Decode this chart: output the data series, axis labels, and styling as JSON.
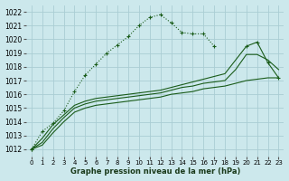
{
  "title": "Graphe pression niveau de la mer (hPa)",
  "bg_color": "#cce8ec",
  "grid_color": "#aacdd4",
  "line_color": "#1a5c1a",
  "ylim": [
    1011.5,
    1022.5
  ],
  "xlim": [
    -0.5,
    23.5
  ],
  "yticks": [
    1012,
    1013,
    1014,
    1015,
    1016,
    1017,
    1018,
    1019,
    1020,
    1021,
    1022
  ],
  "xticks": [
    0,
    1,
    2,
    3,
    4,
    5,
    6,
    7,
    8,
    9,
    10,
    11,
    12,
    13,
    14,
    15,
    16,
    17,
    18,
    19,
    20,
    21,
    22,
    23
  ],
  "s1_x": [
    0,
    1,
    2,
    3,
    4,
    5,
    6,
    7,
    8,
    9,
    10,
    11,
    12,
    13,
    14,
    15,
    16,
    17
  ],
  "s1_y": [
    1012.0,
    1013.3,
    1013.9,
    1014.8,
    1016.2,
    1017.4,
    1018.2,
    1019.0,
    1019.6,
    1020.2,
    1021.0,
    1021.6,
    1021.8,
    1021.2,
    1020.5,
    1020.4,
    1020.4,
    1019.5
  ],
  "s2_x": [
    0,
    1,
    2,
    3,
    4,
    5,
    6,
    7,
    8,
    9,
    10,
    11,
    12,
    13,
    14,
    15,
    16,
    17,
    18,
    19,
    20,
    21,
    22,
    23
  ],
  "s2_y": [
    1012.0,
    1012.8,
    1013.8,
    1014.5,
    1015.2,
    1015.5,
    1015.7,
    1015.8,
    1015.9,
    1016.0,
    1016.1,
    1016.2,
    1016.3,
    1016.5,
    1016.7,
    1016.9,
    1017.1,
    1017.3,
    1017.5,
    1018.5,
    1019.5,
    1019.8,
    1018.3,
    1017.2
  ],
  "s3_x": [
    0,
    1,
    2,
    3,
    4,
    5,
    6,
    7,
    8,
    9,
    10,
    11,
    12,
    13,
    14,
    15,
    16,
    17,
    18,
    19,
    20,
    21,
    22,
    23
  ],
  "s3_y": [
    1012.0,
    1012.5,
    1013.5,
    1014.3,
    1015.0,
    1015.3,
    1015.5,
    1015.6,
    1015.7,
    1015.8,
    1015.9,
    1016.0,
    1016.1,
    1016.3,
    1016.5,
    1016.6,
    1016.8,
    1016.9,
    1017.0,
    1017.8,
    1018.9,
    1018.9,
    1018.5,
    1017.8
  ],
  "s4_x": [
    0,
    1,
    2,
    3,
    4,
    5,
    6,
    7,
    8,
    9,
    10,
    11,
    12,
    13,
    14,
    15,
    16,
    17,
    18,
    19,
    20,
    21,
    22,
    23
  ],
  "s4_y": [
    1012.0,
    1012.3,
    1013.2,
    1014.0,
    1014.7,
    1015.0,
    1015.2,
    1015.3,
    1015.4,
    1015.5,
    1015.6,
    1015.7,
    1015.8,
    1016.0,
    1016.1,
    1016.2,
    1016.4,
    1016.5,
    1016.6,
    1016.8,
    1017.0,
    1017.1,
    1017.2,
    1017.2
  ]
}
